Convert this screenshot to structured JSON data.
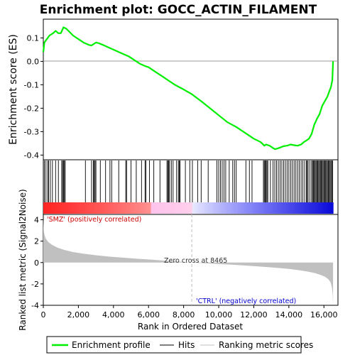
{
  "chart_data": {
    "type": "line",
    "title": "Enrichment plot: GOCC_ACTIN_FILAMENT",
    "xlabel": "Rank in Ordered Dataset",
    "ylabel_top": "Enrichment score (ES)",
    "ylabel_bottom": "Ranked list metric (Signal2Noise)",
    "xlim": [
      0,
      16800
    ],
    "x_ticks": [
      0,
      2000,
      4000,
      6000,
      8000,
      10000,
      12000,
      14000,
      16000
    ],
    "x_tick_labels": [
      "0",
      "2,000",
      "4,000",
      "6,000",
      "8,000",
      "10,000",
      "12,000",
      "14,000",
      "16,000"
    ],
    "es_ylim": [
      -0.42,
      0.18
    ],
    "es_ticks": [
      0.1,
      0.0,
      -0.1,
      -0.2,
      -0.3,
      -0.4
    ],
    "es_tick_labels": [
      "0.1",
      "0.0",
      "-0.1",
      "-0.2",
      "-0.3",
      "-0.4"
    ],
    "metric_ylim": [
      -4,
      4.5
    ],
    "metric_ticks": [
      4,
      2,
      0,
      -2,
      -4
    ],
    "metric_tick_labels": [
      "4",
      "2",
      "0",
      "-2",
      "-4"
    ],
    "enrichment_profile": {
      "name": "Enrichment profile",
      "color": "#00ee00",
      "x": [
        0,
        60,
        150,
        250,
        350,
        450,
        560,
        700,
        860,
        1000,
        1150,
        1300,
        1500,
        1700,
        1900,
        2100,
        2300,
        2450,
        2600,
        2750,
        2900,
        3000,
        3150,
        3400,
        3700,
        4000,
        4300,
        4600,
        4900,
        5200,
        5500,
        5800,
        6000,
        6400,
        6800,
        7200,
        7500,
        8000,
        8465,
        9000,
        9500,
        10000,
        10500,
        11000,
        11500,
        12000,
        12400,
        12600,
        12700,
        12900,
        13100,
        13200,
        13350,
        13500,
        13700,
        13900,
        14100,
        14300,
        14500,
        14700,
        14850,
        15000,
        15150,
        15300,
        15450,
        15600,
        15750,
        15900,
        16050,
        16200,
        16300,
        16400,
        16480,
        16520
      ],
      "y": [
        0.04,
        0.08,
        0.09,
        0.1,
        0.11,
        0.115,
        0.12,
        0.13,
        0.12,
        0.12,
        0.145,
        0.14,
        0.125,
        0.11,
        0.1,
        0.09,
        0.08,
        0.075,
        0.07,
        0.068,
        0.075,
        0.08,
        0.078,
        0.07,
        0.06,
        0.05,
        0.04,
        0.03,
        0.02,
        0.005,
        -0.01,
        -0.02,
        -0.025,
        -0.045,
        -0.065,
        -0.085,
        -0.1,
        -0.12,
        -0.14,
        -0.17,
        -0.2,
        -0.23,
        -0.26,
        -0.28,
        -0.305,
        -0.33,
        -0.345,
        -0.36,
        -0.355,
        -0.36,
        -0.37,
        -0.375,
        -0.372,
        -0.368,
        -0.362,
        -0.36,
        -0.355,
        -0.358,
        -0.36,
        -0.355,
        -0.345,
        -0.338,
        -0.33,
        -0.31,
        -0.27,
        -0.245,
        -0.225,
        -0.19,
        -0.17,
        -0.15,
        -0.13,
        -0.11,
        -0.08,
        0.0
      ]
    },
    "hits": [
      60,
      150,
      250,
      300,
      400,
      520,
      700,
      860,
      1050,
      1100,
      1150,
      1200,
      1250,
      2400,
      2750,
      2850,
      2900,
      2950,
      3000,
      3250,
      3550,
      3800,
      3900,
      4300,
      4700,
      4750,
      5000,
      5300,
      5600,
      5800,
      5850,
      6050,
      6300,
      6650,
      7050,
      7100,
      7150,
      7200,
      7300,
      7400,
      7600,
      7700,
      7750,
      7800,
      8100,
      8350,
      8500,
      8800,
      9000,
      9400,
      9900,
      10000,
      10100,
      10200,
      10300,
      10400,
      10600,
      10800,
      10900,
      11000,
      11550,
      11750,
      11900,
      12550,
      12600,
      12650,
      12700,
      12750,
      12800,
      12950,
      13100,
      13200,
      13300,
      13400,
      13500,
      13600,
      13700,
      13800,
      13900,
      14000,
      14100,
      14200,
      14300,
      14400,
      14500,
      14600,
      14700,
      14800,
      14900,
      15000,
      15050,
      15100,
      15200,
      15300,
      15350,
      15400,
      15450,
      15500,
      15550,
      15600,
      15650,
      15700,
      15750,
      15800,
      15850,
      15900,
      15950,
      16000,
      16050,
      16100,
      16150,
      16200,
      16250,
      16300,
      16350,
      16400,
      16450,
      16500
    ],
    "ranked_metric": {
      "x": [
        0,
        30,
        80,
        150,
        300,
        500,
        800,
        1200,
        1700,
        2300,
        3000,
        3800,
        4600,
        5400,
        6200,
        7000,
        7800,
        8465,
        9200,
        10000,
        10800,
        11600,
        12400,
        13200,
        14000,
        14600,
        15100,
        15500,
        15800,
        16050,
        16250,
        16380,
        16450,
        16500,
        16520
      ],
      "y": [
        4.1,
        2.9,
        2.5,
        2.2,
        1.9,
        1.65,
        1.4,
        1.18,
        0.98,
        0.82,
        0.68,
        0.55,
        0.45,
        0.35,
        0.26,
        0.17,
        0.08,
        0.0,
        -0.07,
        -0.14,
        -0.21,
        -0.29,
        -0.38,
        -0.48,
        -0.6,
        -0.72,
        -0.85,
        -1.0,
        -1.15,
        -1.32,
        -1.55,
        -1.85,
        -2.3,
        -3.0,
        -3.9
      ]
    },
    "zero_cross": 8465,
    "annotations": {
      "positive": "'SMZ' (positively correlated)",
      "negative": "'CTRL' (negatively correlated)",
      "zero_cross": "Zero cross at 8465"
    },
    "legend": {
      "placement": "bottom",
      "entries": [
        "Enrichment profile",
        "Hits",
        "Ranking metric scores"
      ]
    },
    "colors": {
      "profile": "#00ee00",
      "hits": "#000000",
      "metric": "#c0c0c0",
      "pos_label": "#cc0000",
      "neg_label": "#0000cc",
      "zero_line": "#cccccc"
    }
  }
}
